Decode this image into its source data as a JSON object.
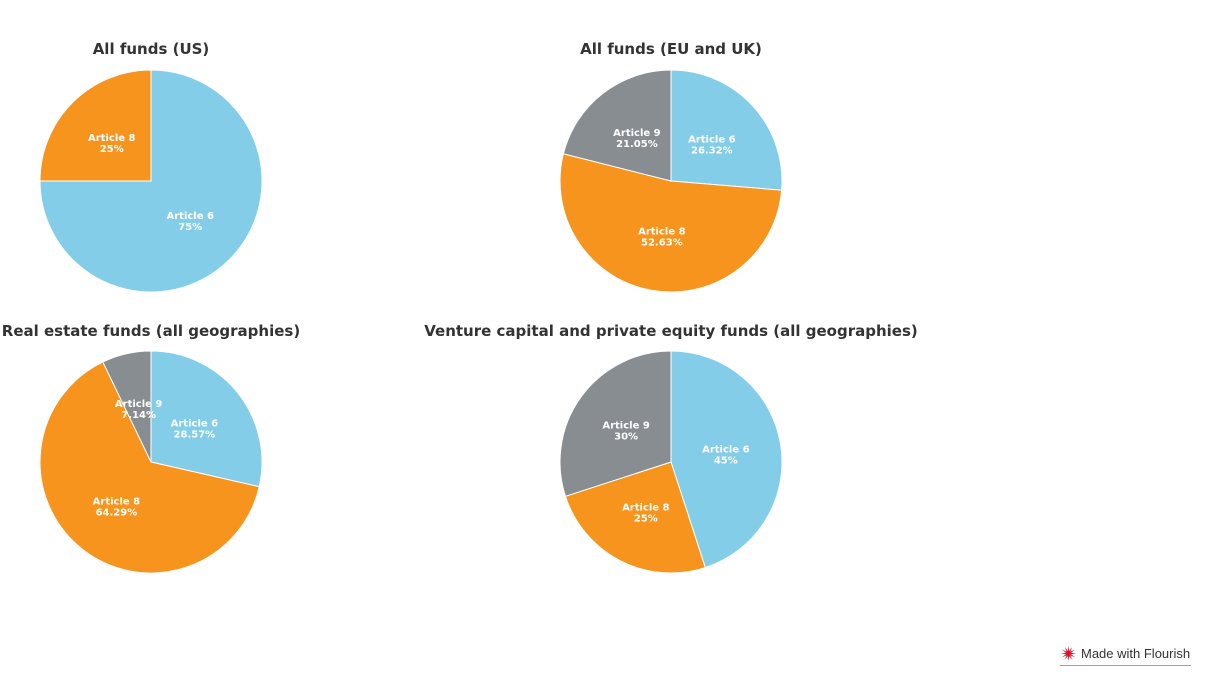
{
  "colors": {
    "Article 6": "#84cde9",
    "Article 8": "#f7941d",
    "Article 9": "#878d90"
  },
  "chart_data": [
    {
      "type": "pie",
      "title": "All funds (US)",
      "slices": [
        {
          "label": "Article 6",
          "value": 75,
          "display": "75%"
        },
        {
          "label": "Article 8",
          "value": 25,
          "display": "25%"
        }
      ]
    },
    {
      "type": "pie",
      "title": "All funds (EU and UK)",
      "slices": [
        {
          "label": "Article 6",
          "value": 26.32,
          "display": "26.32%"
        },
        {
          "label": "Article 8",
          "value": 52.63,
          "display": "52.63%"
        },
        {
          "label": "Article 9",
          "value": 21.05,
          "display": "21.05%"
        }
      ]
    },
    {
      "type": "pie",
      "title": "Real estate funds (all geographies)",
      "slices": [
        {
          "label": "Article 6",
          "value": 28.57,
          "display": "28.57%"
        },
        {
          "label": "Article 8",
          "value": 64.29,
          "display": "64.29%"
        },
        {
          "label": "Article 9",
          "value": 7.14,
          "display": "7.14%"
        }
      ]
    },
    {
      "type": "pie",
      "title": "Venture capital and private equity funds (all geographies)",
      "slices": [
        {
          "label": "Article 6",
          "value": 45,
          "display": "45%"
        },
        {
          "label": "Article 8",
          "value": 25,
          "display": "25%"
        },
        {
          "label": "Article 9",
          "value": 30,
          "display": "30%"
        }
      ]
    }
  ],
  "footer": {
    "credit_label": "Made with Flourish",
    "credit_icon": "flourish-logo-icon"
  }
}
